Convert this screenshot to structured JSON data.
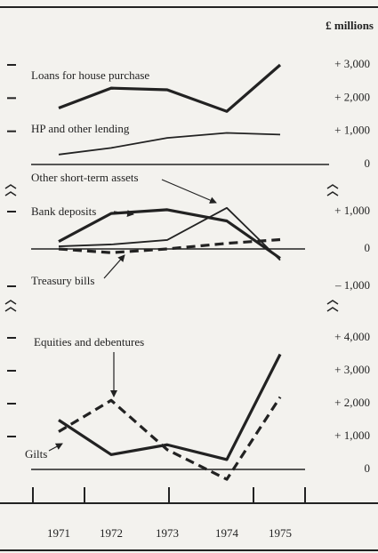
{
  "unit_label": "£ millions",
  "chart_data": [
    {
      "type": "line",
      "ylim": [
        0,
        3000
      ],
      "yticks": [
        0,
        {
          "value": 1000,
          "label": "+ 1,000"
        },
        {
          "value": 2000,
          "label": "+ 2,000"
        },
        {
          "value": 3000,
          "label": "+ 3,000"
        }
      ],
      "series": [
        {
          "name": "Loans for house purchase",
          "color": "#222222",
          "style": "solid",
          "linewidth": 3.2,
          "values": [
            1700,
            2300,
            2250,
            1600,
            3000
          ]
        },
        {
          "name": "HP and other lending",
          "color": "#222222",
          "style": "solid",
          "linewidth": 1.8,
          "values": [
            300,
            500,
            800,
            950,
            900
          ]
        }
      ]
    },
    {
      "type": "line",
      "ylim": [
        -1000,
        1000
      ],
      "yticks": [
        {
          "value": -1000,
          "label": "– 1,000"
        },
        0,
        {
          "value": 1000,
          "label": "+ 1,000"
        }
      ],
      "series": [
        {
          "name": "Bank deposits",
          "color": "#222222",
          "style": "solid",
          "linewidth": 3.2,
          "values": [
            200,
            950,
            1050,
            750,
            -250
          ]
        },
        {
          "name": "Other short-term assets",
          "color": "#222222",
          "style": "solid",
          "linewidth": 1.8,
          "values": [
            70,
            120,
            240,
            1100,
            -300
          ]
        },
        {
          "name": "Treasury bills",
          "color": "#222222",
          "style": "dashed",
          "linewidth": 3.2,
          "values": [
            0,
            -100,
            0,
            150,
            250
          ]
        }
      ]
    },
    {
      "type": "line",
      "categories": [
        "1971",
        "1972",
        "1973",
        "1974",
        "1975"
      ],
      "ylim": [
        0,
        4000
      ],
      "yticks": [
        0,
        {
          "value": 1000,
          "label": "+ 1,000"
        },
        {
          "value": 2000,
          "label": "+ 2,000"
        },
        {
          "value": 3000,
          "label": "+ 3,000"
        },
        {
          "value": 4000,
          "label": "+ 4,000"
        }
      ],
      "series": [
        {
          "name": "Equities and debentures",
          "color": "#222222",
          "style": "dashed",
          "linewidth": 3.2,
          "values": [
            1150,
            2100,
            600,
            -300,
            2200
          ]
        },
        {
          "name": "Gilts",
          "color": "#222222",
          "style": "solid",
          "linewidth": 3.2,
          "values": [
            1500,
            450,
            750,
            300,
            3500
          ]
        }
      ]
    }
  ]
}
